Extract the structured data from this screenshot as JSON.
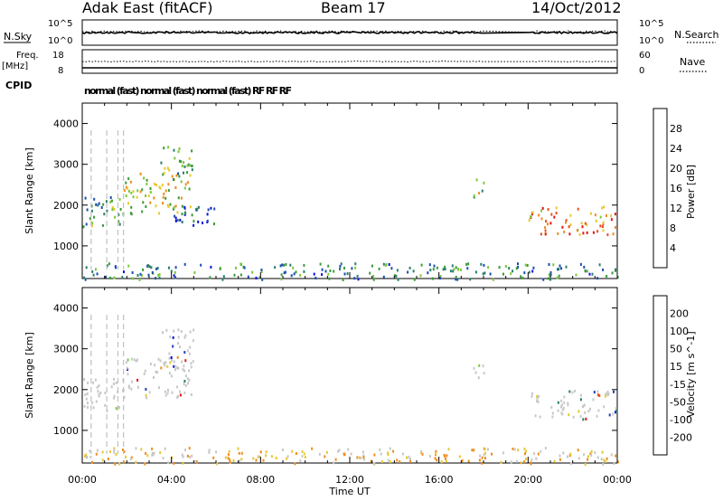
{
  "header": {
    "title": "Adak East (fitACF)",
    "beam": "Beam 17",
    "date": "14/Oct/2012"
  },
  "strip_labels": {
    "nsky": "N.Sky",
    "nsky_ticks": [
      "10^5",
      "10^0"
    ],
    "nsearch": "N.Search",
    "nsearch_ticks": [
      "10^5",
      "10^0"
    ],
    "freq_line1": "Freq.",
    "freq_line2": "[MHz]",
    "freq_ticks": [
      "18",
      "8"
    ],
    "nave": "Nave",
    "nave_ticks": [
      "60",
      "0"
    ],
    "cpid": "CPID",
    "cpid_text": "normal (fast)  normal (fast)  normal (fast)  RF RF RF"
  },
  "colors": {
    "power": [
      "#1010e0",
      "#1a4fb0",
      "#2b7f6a",
      "#3a9a3a",
      "#7cc83c",
      "#e6c832",
      "#f08c1e",
      "#e6501e",
      "#e61414"
    ],
    "velocity": [
      "#1010e0",
      "#2040c0",
      "#2b7f6a",
      "#7cc83c",
      "#c8c8c8",
      "#e6c832",
      "#f08c1e",
      "#e6501e",
      "#e61414"
    ]
  },
  "chart_data": [
    {
      "type": "heatmap",
      "name": "power",
      "ylabel": "Slant Range [km]",
      "xlabel": "",
      "x_ticks": [
        "00:00",
        "04:00",
        "08:00",
        "12:00",
        "16:00",
        "20:00",
        "00:00"
      ],
      "xlim": [
        0,
        24
      ],
      "ylim": [
        200,
        4500
      ],
      "y_ticks": [
        1000,
        2000,
        3000,
        4000
      ],
      "colorbar_label": "Power [dB]",
      "colorbar_ticks": [
        4,
        8,
        12,
        16,
        20,
        24,
        28
      ],
      "colorbar_range": [
        0,
        32
      ],
      "data_gaps_hours": [
        [
          18.0,
          20.0
        ]
      ],
      "echo_regions": [
        {
          "t0": 0.0,
          "t1": 1.8,
          "r0": 1500,
          "r1": 2300,
          "level": 12
        },
        {
          "t0": 1.8,
          "t1": 4.9,
          "r0": 1800,
          "r1": 2800,
          "level": 18
        },
        {
          "t0": 3.5,
          "t1": 5.0,
          "r0": 2600,
          "r1": 3500,
          "level": 14
        },
        {
          "t0": 4.0,
          "t1": 6.0,
          "r0": 1400,
          "r1": 2000,
          "level": 6
        },
        {
          "t0": 17.5,
          "t1": 18.0,
          "r0": 2200,
          "r1": 2700,
          "level": 16
        },
        {
          "t0": 20.0,
          "t1": 24.0,
          "r0": 1300,
          "r1": 2000,
          "level": 24
        },
        {
          "t0": 0.0,
          "t1": 24.0,
          "r0": 200,
          "r1": 600,
          "level": 10
        }
      ]
    },
    {
      "type": "heatmap",
      "name": "velocity",
      "ylabel": "Slant Range [km]",
      "xlabel": "Time UT",
      "x_ticks": [
        "00:00",
        "04:00",
        "08:00",
        "12:00",
        "16:00",
        "20:00",
        "00:00"
      ],
      "xlim": [
        0,
        24
      ],
      "ylim": [
        200,
        4500
      ],
      "y_ticks": [
        1000,
        2000,
        3000,
        4000
      ],
      "colorbar_label": "Velocity [m s^-1]",
      "colorbar_ticks": [
        200,
        100,
        50,
        15,
        -15,
        -50,
        -100,
        -200
      ],
      "data_gaps_hours": [
        [
          18.0,
          20.0
        ]
      ],
      "echo_regions": [
        {
          "t0": 0.0,
          "t1": 1.8,
          "r0": 1500,
          "r1": 2300,
          "level": 0
        },
        {
          "t0": 1.8,
          "t1": 4.9,
          "r0": 1800,
          "r1": 2800,
          "level": 0
        },
        {
          "t0": 3.5,
          "t1": 5.0,
          "r0": 2600,
          "r1": 3500,
          "level": 0
        },
        {
          "t0": 17.5,
          "t1": 18.0,
          "r0": 2200,
          "r1": 2700,
          "level": 0
        },
        {
          "t0": 20.0,
          "t1": 24.0,
          "r0": 1300,
          "r1": 2000,
          "level": 0
        },
        {
          "t0": 0.0,
          "t1": 24.0,
          "r0": 200,
          "r1": 600,
          "level": -30
        }
      ]
    }
  ]
}
